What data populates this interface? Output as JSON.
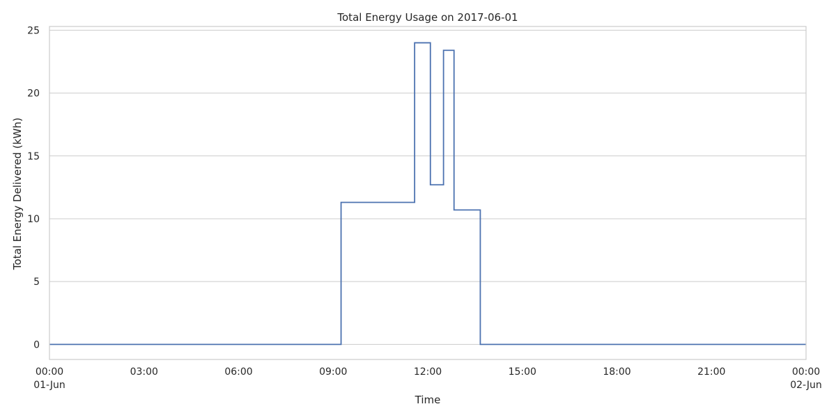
{
  "chart_data": {
    "type": "line",
    "title": "Total Energy Usage on 2017-06-01",
    "xlabel": "Time",
    "ylabel": "Total Energy Delivered (kWh)",
    "xlim": [
      "2017-06-01 00:00",
      "2017-06-02 00:00"
    ],
    "ylim": [
      -1.2,
      25.3
    ],
    "grid": true,
    "y_ticks": [
      0,
      5,
      10,
      15,
      20,
      25
    ],
    "x_ticks": [
      {
        "time": "2017-06-01 00:00",
        "label": "00:00",
        "sublabel": "01-Jun"
      },
      {
        "time": "2017-06-01 03:00",
        "label": "03:00",
        "sublabel": ""
      },
      {
        "time": "2017-06-01 06:00",
        "label": "06:00",
        "sublabel": ""
      },
      {
        "time": "2017-06-01 09:00",
        "label": "09:00",
        "sublabel": ""
      },
      {
        "time": "2017-06-01 12:00",
        "label": "12:00",
        "sublabel": ""
      },
      {
        "time": "2017-06-01 15:00",
        "label": "15:00",
        "sublabel": ""
      },
      {
        "time": "2017-06-01 18:00",
        "label": "18:00",
        "sublabel": ""
      },
      {
        "time": "2017-06-01 21:00",
        "label": "21:00",
        "sublabel": ""
      },
      {
        "time": "2017-06-02 00:00",
        "label": "00:00",
        "sublabel": "02-Jun"
      }
    ],
    "series": [
      {
        "color": "#4c72b0",
        "step": "post",
        "points": [
          {
            "x": "2017-06-01 00:00",
            "y": 0
          },
          {
            "x": "2017-06-01 09:15",
            "y": 11.3
          },
          {
            "x": "2017-06-01 11:35",
            "y": 24.0
          },
          {
            "x": "2017-06-01 12:05",
            "y": 12.7
          },
          {
            "x": "2017-06-01 12:30",
            "y": 23.4
          },
          {
            "x": "2017-06-01 12:50",
            "y": 10.7
          },
          {
            "x": "2017-06-01 13:40",
            "y": 0
          },
          {
            "x": "2017-06-02 00:00",
            "y": 0
          }
        ]
      }
    ]
  }
}
